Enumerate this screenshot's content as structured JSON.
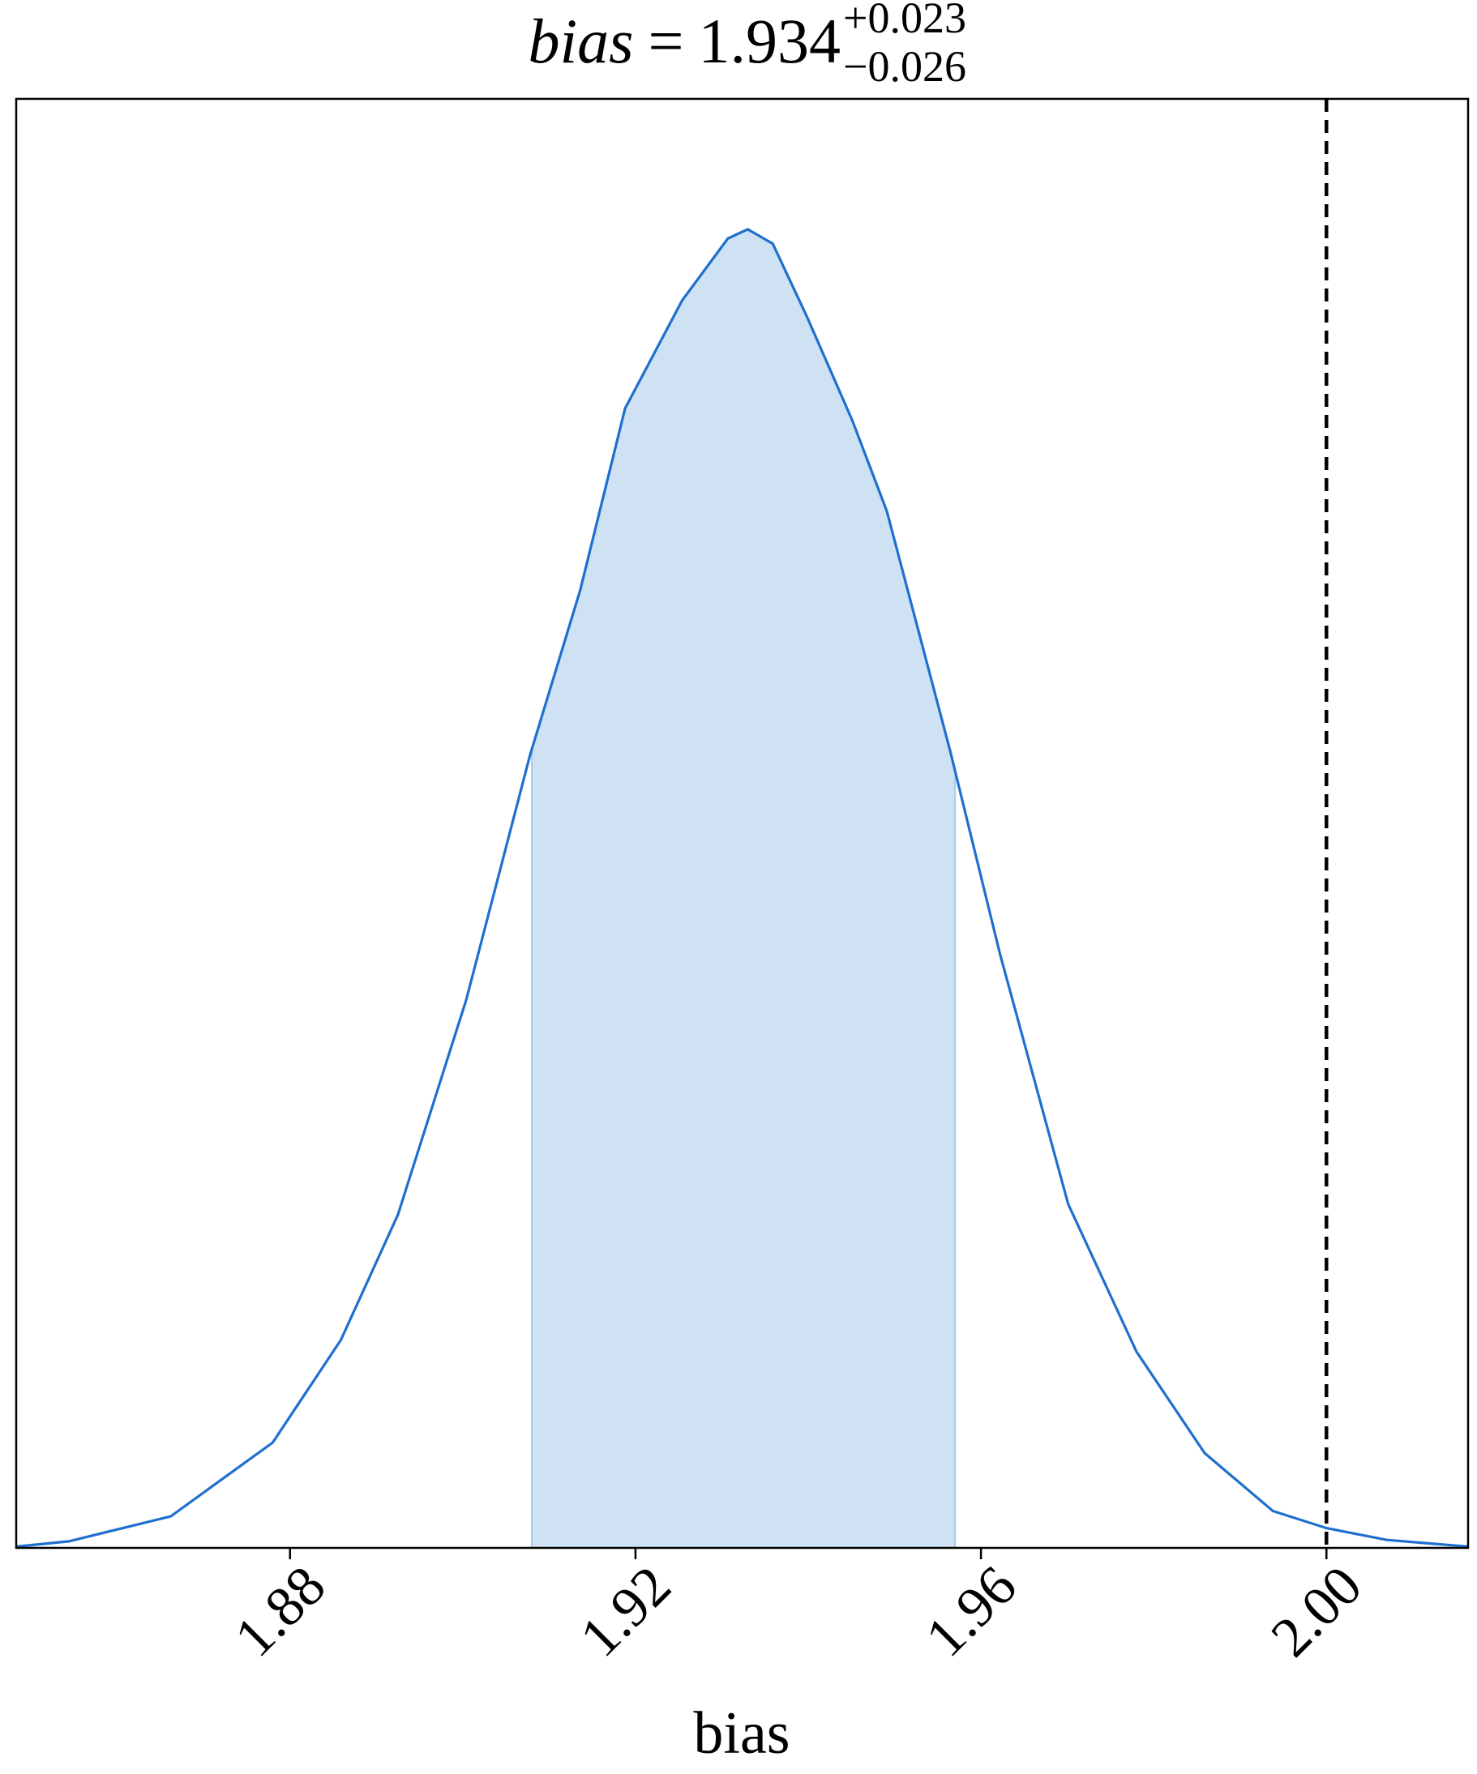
{
  "chart_data": {
    "type": "density",
    "title": {
      "symbol": "bias",
      "relation": "=",
      "value": 1.934,
      "upper": {
        "value": 0.023,
        "label": "+0.023"
      },
      "lower": {
        "value": -0.026,
        "label": "−0.026"
      }
    },
    "xlabel": "bias",
    "x": [
      1.8483,
      1.8544,
      1.8662,
      1.878,
      1.8859,
      1.8925,
      1.9004,
      1.9078,
      1.9136,
      1.9188,
      1.9254,
      1.9307,
      1.933,
      1.9359,
      1.9399,
      1.9451,
      1.9491,
      1.9564,
      1.9622,
      1.9701,
      1.978,
      1.9859,
      1.9938,
      2.0,
      2.007,
      2.0164
    ],
    "values": [
      0.001,
      0.005,
      0.024,
      0.08,
      0.158,
      0.253,
      0.416,
      0.602,
      0.727,
      0.865,
      0.947,
      0.994,
      1.001,
      0.99,
      0.934,
      0.856,
      0.787,
      0.606,
      0.451,
      0.261,
      0.149,
      0.072,
      0.028,
      0.015,
      0.006,
      0.001
    ],
    "color": "#1f6fcf",
    "fill_color": "#cfe2f4",
    "interval": [
      1.908,
      1.957
    ],
    "truth": 2.0,
    "xlim": [
      1.8483,
      2.0164
    ],
    "ylim": [
      0,
      1.1
    ],
    "xticks": [
      1.88,
      1.92,
      1.96,
      {
        "value": 2,
        "label": "2.00"
      }
    ]
  }
}
